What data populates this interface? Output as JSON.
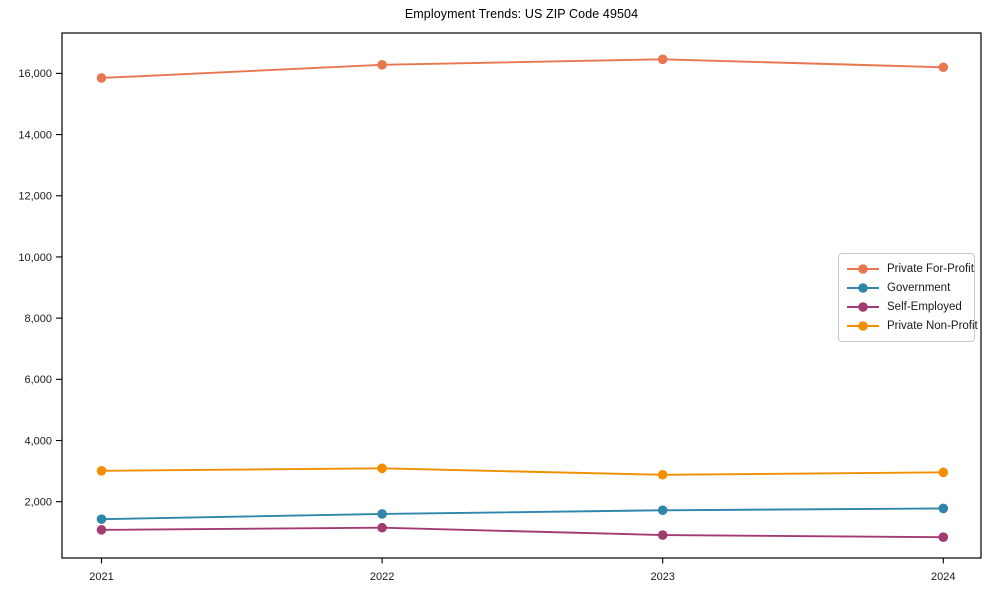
{
  "chart_data": {
    "type": "line",
    "title": "Employment Trends: US ZIP Code 49504",
    "categories": [
      "2021",
      "2022",
      "2023",
      "2024"
    ],
    "series": [
      {
        "name": "Private For-Profit",
        "color": "#E8764E",
        "values": [
          15850,
          16280,
          16460,
          16200
        ]
      },
      {
        "name": "Government",
        "color": "#2E86AB",
        "values": [
          1430,
          1600,
          1720,
          1780
        ]
      },
      {
        "name": "Self-Employed",
        "color": "#A23B72",
        "values": [
          1080,
          1150,
          910,
          840
        ]
      },
      {
        "name": "Private Non-Profit",
        "color": "#F18F01",
        "values": [
          3010,
          3090,
          2880,
          2960
        ]
      }
    ],
    "xlabel": "",
    "ylabel": "",
    "y_ticks": [
      2000,
      4000,
      6000,
      8000,
      10000,
      12000,
      14000,
      16000
    ],
    "ylim": [
      160,
      17320
    ],
    "grid": false,
    "legend_position": "center-right",
    "axis_color": "#000000",
    "text_color": "#1a1a1a",
    "marker": "circle"
  }
}
